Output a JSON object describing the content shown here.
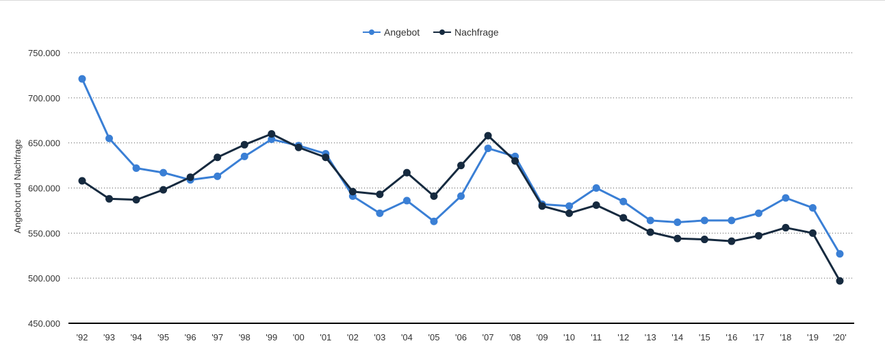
{
  "chart_data": {
    "type": "line",
    "title": "",
    "xlabel": "",
    "ylabel": "Angebot und Nachfrage",
    "categories": [
      "'92",
      "'93",
      "'94",
      "'95",
      "'96",
      "'97",
      "'98",
      "'99",
      "'00",
      "'01",
      "'02",
      "'03",
      "'04",
      "'05",
      "'06",
      "'07",
      "'08",
      "'09",
      "'10",
      "'11",
      "'12",
      "'13",
      "'14",
      "'15",
      "'16",
      "'17",
      "'18",
      "'19",
      "'20'"
    ],
    "yticks": [
      450000,
      500000,
      550000,
      600000,
      650000,
      700000,
      750000
    ],
    "ytick_labels": [
      "450.000",
      "500.000",
      "550.000",
      "600.000",
      "650.000",
      "700.000",
      "750.000"
    ],
    "ylim": [
      450000,
      750000
    ],
    "grid": true,
    "legend_position": "top-center",
    "series": [
      {
        "name": "Angebot",
        "color": "#3a7fd5",
        "values": [
          721000,
          655000,
          622000,
          617000,
          609000,
          613000,
          635000,
          654000,
          647000,
          638000,
          591000,
          572000,
          586000,
          563000,
          591000,
          644000,
          635000,
          582000,
          580000,
          600000,
          585000,
          564000,
          562000,
          564000,
          564000,
          572000,
          589000,
          578000,
          527000
        ]
      },
      {
        "name": "Nachfrage",
        "color": "#162a3f",
        "values": [
          608000,
          588000,
          587000,
          598000,
          612000,
          634000,
          648000,
          660000,
          645000,
          634000,
          596000,
          593000,
          617000,
          591000,
          625000,
          658000,
          630000,
          580000,
          572000,
          581000,
          567000,
          551000,
          544000,
          543000,
          541000,
          547000,
          556000,
          550000,
          497000
        ]
      }
    ]
  }
}
